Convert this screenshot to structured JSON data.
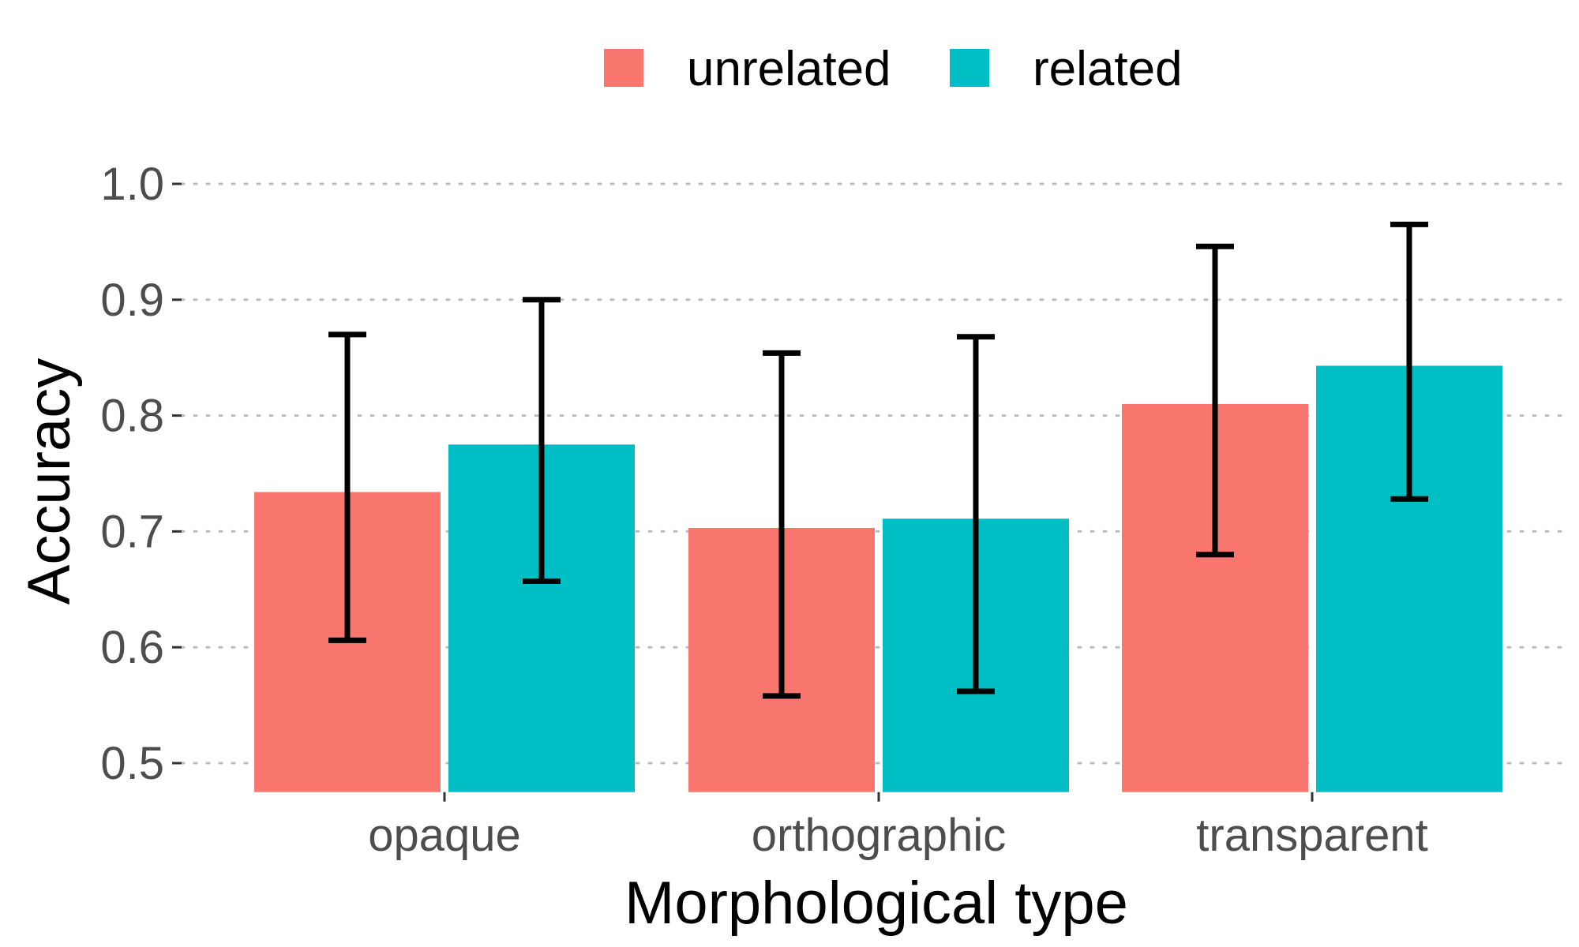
{
  "chart_data": {
    "type": "bar",
    "title": "",
    "xlabel": "Morphological type",
    "ylabel": "Accuracy",
    "categories": [
      "opaque",
      "orthographic",
      "transparent"
    ],
    "series": [
      {
        "name": "unrelated",
        "color": "#F8766D",
        "values": [
          0.734,
          0.703,
          0.81
        ],
        "err_low": [
          0.606,
          0.558,
          0.68
        ],
        "err_high": [
          0.87,
          0.854,
          0.946
        ]
      },
      {
        "name": "related",
        "color": "#00BFC4",
        "values": [
          0.775,
          0.711,
          0.843
        ],
        "err_low": [
          0.657,
          0.562,
          0.728
        ],
        "err_high": [
          0.9,
          0.868,
          0.965
        ]
      }
    ],
    "ylim": [
      0.475,
      1.0
    ],
    "yticks": [
      "0.5",
      "0.6",
      "0.7",
      "0.8",
      "0.9",
      "1.0"
    ],
    "grid": "horizontal dotted",
    "legend_position": "top"
  }
}
